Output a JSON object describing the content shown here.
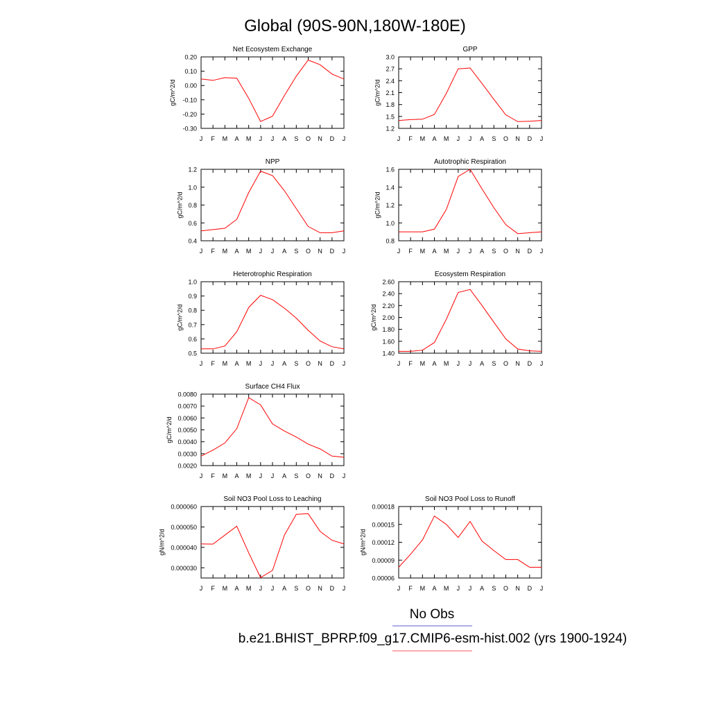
{
  "title": "Global (90S-90N,180W-180E)",
  "months": [
    "J",
    "F",
    "M",
    "A",
    "M",
    "J",
    "J",
    "A",
    "S",
    "O",
    "N",
    "D",
    "J"
  ],
  "legend": {
    "entries": [
      {
        "label": "No Obs",
        "color": "#5b5bd6"
      },
      {
        "label": "b.e21.BHIST_BPRP.f09_g17.CMIP6-esm-hist.002 (yrs 1900-1924)",
        "color": "#ff5a5a"
      }
    ]
  },
  "chart_data": [
    {
      "type": "line",
      "title": "Net Ecosystem Exchange",
      "ylabel": "gC/m^2/d",
      "ylim": [
        -0.3,
        0.2
      ],
      "yticks": [
        -0.3,
        -0.2,
        -0.1,
        0.0,
        0.1,
        0.2
      ],
      "ydec": 2,
      "categories": [
        "J",
        "F",
        "M",
        "A",
        "M",
        "J",
        "J",
        "A",
        "S",
        "O",
        "N",
        "D",
        "J"
      ],
      "series": [
        {
          "values": [
            0.045,
            0.036,
            0.055,
            0.051,
            -0.09,
            -0.252,
            -0.215,
            -0.07,
            0.065,
            0.178,
            0.145,
            0.08,
            0.045
          ],
          "color": "#ff0000"
        }
      ]
    },
    {
      "type": "line",
      "title": "GPP",
      "ylabel": "gC/m^2/d",
      "ylim": [
        1.2,
        3.0
      ],
      "yticks": [
        1.2,
        1.5,
        1.8,
        2.1,
        2.4,
        2.7,
        3.0
      ],
      "ydec": 1,
      "categories": [
        "J",
        "F",
        "M",
        "A",
        "M",
        "J",
        "J",
        "A",
        "S",
        "O",
        "N",
        "D",
        "J"
      ],
      "series": [
        {
          "values": [
            1.4,
            1.42,
            1.43,
            1.55,
            2.08,
            2.7,
            2.72,
            2.33,
            1.93,
            1.54,
            1.37,
            1.38,
            1.4
          ],
          "color": "#ff0000"
        }
      ]
    },
    {
      "type": "line",
      "title": "NPP",
      "ylabel": "gC/m^2/d",
      "ylim": [
        0.4,
        1.2
      ],
      "yticks": [
        0.4,
        0.6,
        0.8,
        1.0,
        1.2
      ],
      "ydec": 1,
      "categories": [
        "J",
        "F",
        "M",
        "A",
        "M",
        "J",
        "J",
        "A",
        "S",
        "O",
        "N",
        "D",
        "J"
      ],
      "series": [
        {
          "values": [
            0.51,
            0.525,
            0.54,
            0.64,
            0.94,
            1.18,
            1.13,
            0.96,
            0.76,
            0.56,
            0.49,
            0.49,
            0.51
          ],
          "color": "#ff0000"
        }
      ]
    },
    {
      "type": "line",
      "title": "Autotrophic Respiration",
      "ylabel": "gC/m^2/d",
      "ylim": [
        0.8,
        1.6
      ],
      "yticks": [
        0.8,
        1.0,
        1.2,
        1.4,
        1.6
      ],
      "ydec": 1,
      "categories": [
        "J",
        "F",
        "M",
        "A",
        "M",
        "J",
        "J",
        "A",
        "S",
        "O",
        "N",
        "D",
        "J"
      ],
      "series": [
        {
          "values": [
            0.9,
            0.9,
            0.9,
            0.93,
            1.15,
            1.52,
            1.6,
            1.38,
            1.17,
            0.98,
            0.88,
            0.89,
            0.9
          ],
          "color": "#ff0000"
        }
      ]
    },
    {
      "type": "line",
      "title": "Heterotrophic Respiration",
      "ylabel": "gC/m^2/d",
      "ylim": [
        0.5,
        1.0
      ],
      "yticks": [
        0.5,
        0.6,
        0.7,
        0.8,
        0.9,
        1.0
      ],
      "ydec": 1,
      "categories": [
        "J",
        "F",
        "M",
        "A",
        "M",
        "J",
        "J",
        "A",
        "S",
        "O",
        "N",
        "D",
        "J"
      ],
      "series": [
        {
          "values": [
            0.53,
            0.53,
            0.55,
            0.65,
            0.82,
            0.905,
            0.875,
            0.815,
            0.745,
            0.66,
            0.585,
            0.545,
            0.53
          ],
          "color": "#ff0000"
        }
      ]
    },
    {
      "type": "line",
      "title": "Ecosystem Respiration",
      "ylabel": "gC/m^2/d",
      "ylim": [
        1.4,
        2.6
      ],
      "yticks": [
        1.4,
        1.6,
        1.8,
        2.0,
        2.2,
        2.4,
        2.6
      ],
      "ydec": 2,
      "categories": [
        "J",
        "F",
        "M",
        "A",
        "M",
        "J",
        "J",
        "A",
        "S",
        "O",
        "N",
        "D",
        "J"
      ],
      "series": [
        {
          "values": [
            1.43,
            1.43,
            1.45,
            1.58,
            1.97,
            2.42,
            2.47,
            2.2,
            1.92,
            1.64,
            1.47,
            1.44,
            1.43
          ],
          "color": "#ff0000"
        }
      ]
    },
    {
      "type": "line",
      "title": "Surface CH4 Flux",
      "ylabel": "gC/m^2/d",
      "ylim": [
        0.002,
        0.008
      ],
      "yticks": [
        0.002,
        0.003,
        0.004,
        0.005,
        0.006,
        0.007,
        0.008
      ],
      "ydec": 4,
      "categories": [
        "J",
        "F",
        "M",
        "A",
        "M",
        "J",
        "J",
        "A",
        "S",
        "O",
        "N",
        "D",
        "J"
      ],
      "series": [
        {
          "values": [
            0.0028,
            0.0033,
            0.0039,
            0.0051,
            0.0077,
            0.0071,
            0.0055,
            0.0049,
            0.0044,
            0.0038,
            0.0034,
            0.0028,
            0.0027
          ],
          "color": "#ff0000"
        }
      ]
    },
    {
      "type": "line",
      "title": "Soil NO3 Pool Loss to Leaching",
      "ylabel": "gN/m^2/d",
      "ylim": [
        2.5e-05,
        6e-05
      ],
      "yticks": [
        3e-05,
        4e-05,
        5e-05,
        6e-05
      ],
      "ydec": 6,
      "categories": [
        "J",
        "F",
        "M",
        "A",
        "M",
        "J",
        "J",
        "A",
        "S",
        "O",
        "N",
        "D",
        "J"
      ],
      "series": [
        {
          "values": [
            4.17e-05,
            4.16e-05,
            4.6e-05,
            5.04e-05,
            3.73e-05,
            2.52e-05,
            2.87e-05,
            4.6e-05,
            5.62e-05,
            5.65e-05,
            4.78e-05,
            4.35e-05,
            4.17e-05
          ],
          "color": "#ff0000"
        }
      ]
    },
    {
      "type": "line",
      "title": "Soil NO3 Pool Loss to Runoff",
      "ylabel": "gN/m^2/d",
      "ylim": [
        6e-05,
        0.00018
      ],
      "yticks": [
        6e-05,
        9e-05,
        0.00012,
        0.00015,
        0.00018
      ],
      "ydec": 5,
      "categories": [
        "J",
        "F",
        "M",
        "A",
        "M",
        "J",
        "J",
        "A",
        "S",
        "O",
        "N",
        "D",
        "J"
      ],
      "series": [
        {
          "values": [
            7.8e-05,
            0.0001,
            0.000124,
            0.000164,
            0.00015,
            0.000128,
            0.000155,
            0.000122,
            0.000106,
            9.1e-05,
            9.1e-05,
            7.8e-05,
            7.8e-05
          ],
          "color": "#ff0000"
        }
      ]
    }
  ]
}
